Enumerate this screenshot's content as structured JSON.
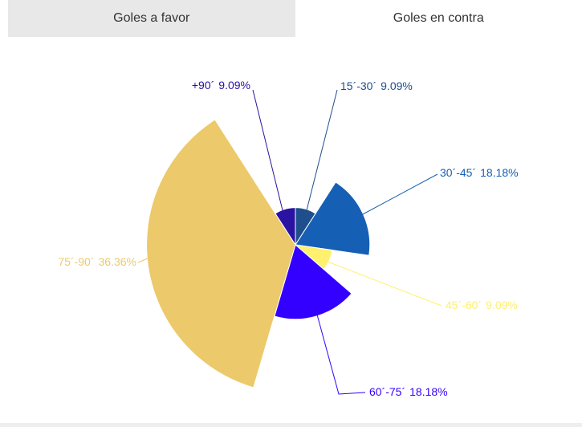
{
  "tabs": [
    "Goles a favor",
    "Goles en contra"
  ],
  "chart_data": {
    "type": "variablepie",
    "categories": [
      "15´-30´",
      "30´-45´",
      "45´-60´",
      "60´-75´",
      "75´-90´",
      "+90´"
    ],
    "values": [
      9.09,
      18.18,
      9.09,
      18.18,
      36.36,
      9.09
    ],
    "value_labels": [
      "9.09%",
      "18.18%",
      "9.09%",
      "18.18%",
      "36.36%",
      "9.09%"
    ],
    "colors": [
      "#1f4e8c",
      "#155fb5",
      "#fff06e",
      "#3300ff",
      "#ecc96a",
      "#2a12a3"
    ]
  }
}
